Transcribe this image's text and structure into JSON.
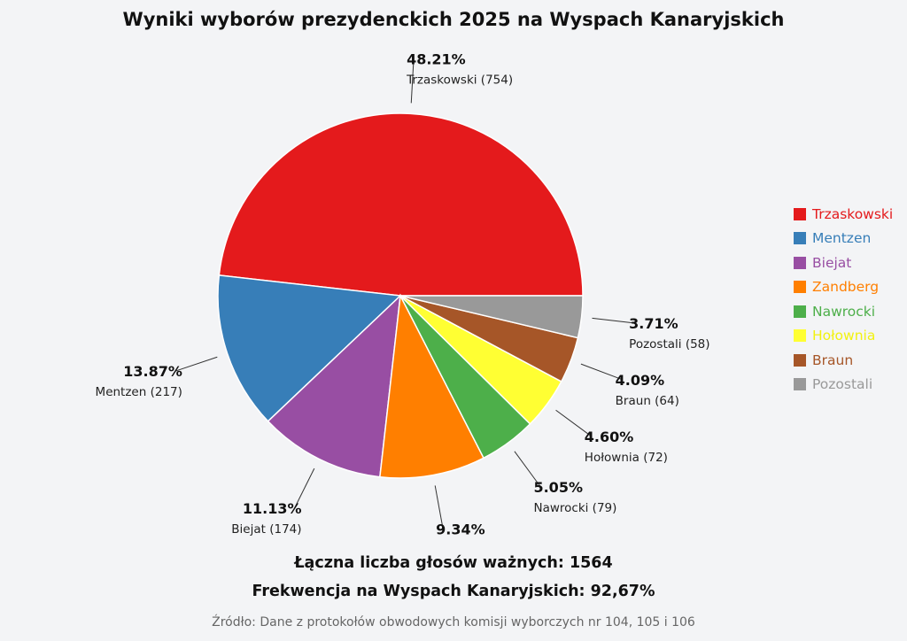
{
  "title": "Wyniki wyborów prezydenckich 2025 na Wyspach Kanaryjskich",
  "chart_data": {
    "type": "pie",
    "slices": [
      {
        "label": "Trzaskowski",
        "votes": 754,
        "percent": 48.21,
        "percent_label": "48.21%",
        "count_label": "Trzaskowski (754)",
        "color": "#e41a1c"
      },
      {
        "label": "Mentzen",
        "votes": 217,
        "percent": 13.87,
        "percent_label": "13.87%",
        "count_label": "Mentzen (217)",
        "color": "#377eb8"
      },
      {
        "label": "Biejat",
        "votes": 174,
        "percent": 11.13,
        "percent_label": "11.13%",
        "count_label": "Biejat (174)",
        "color": "#984ea3"
      },
      {
        "label": "Zandberg",
        "votes": 146,
        "percent": 9.34,
        "percent_label": "9.34%",
        "count_label": "",
        "color": "#ff7f00"
      },
      {
        "label": "Nawrocki",
        "votes": 79,
        "percent": 5.05,
        "percent_label": "5.05%",
        "count_label": "Nawrocki (79)",
        "color": "#4daf4a"
      },
      {
        "label": "Hołownia",
        "votes": 72,
        "percent": 4.6,
        "percent_label": "4.60%",
        "count_label": "Hołownia (72)",
        "color": "#ffff33"
      },
      {
        "label": "Braun",
        "votes": 64,
        "percent": 4.09,
        "percent_label": "4.09%",
        "count_label": "Braun (64)",
        "color": "#a65628"
      },
      {
        "label": "Pozostali",
        "votes": 58,
        "percent": 3.71,
        "percent_label": "3.71%",
        "count_label": "Pozostali (58)",
        "color": "#999999"
      }
    ],
    "legend_position": "right"
  },
  "summary": {
    "total_votes": "Łączna liczba głosów ważnych: 1564",
    "turnout": "Frekwencja na Wyspach Kanaryjskich: 92,67%"
  },
  "source": "Źródło: Dane z protokołów obwodowych komisji wyborczych nr 104, 105 i 106"
}
